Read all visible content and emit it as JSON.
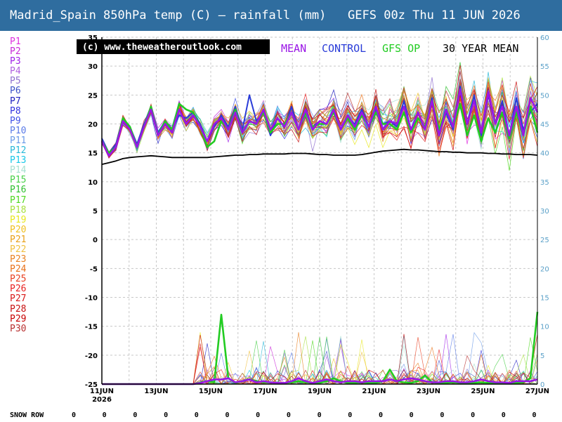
{
  "title": "Madrid_Spain 850hPa temp (C) — rainfall (mm)   GEFS 00z Thu 11 JUN 2026",
  "watermark": "(c) www.theweatheroutlook.com",
  "legend": [
    {
      "text": "MEAN",
      "color": "#9a16e6"
    },
    {
      "text": "CONTROL",
      "color": "#2a3cd8"
    },
    {
      "text": "GFS OP",
      "color": "#22cc22"
    },
    {
      "text": "30 YEAR MEAN",
      "color": "#000000"
    }
  ],
  "perturbations": [
    {
      "name": "P1",
      "color": "#e030e0"
    },
    {
      "name": "P2",
      "color": "#c828d8"
    },
    {
      "name": "P3",
      "color": "#a020e8"
    },
    {
      "name": "P4",
      "color": "#b060e0"
    },
    {
      "name": "P5",
      "color": "#9070d0"
    },
    {
      "name": "P6",
      "color": "#3a4fc8"
    },
    {
      "name": "P7",
      "color": "#2020c0"
    },
    {
      "name": "P8",
      "color": "#3030e0"
    },
    {
      "name": "P9",
      "color": "#4050e8"
    },
    {
      "name": "P10",
      "color": "#5a7ae8"
    },
    {
      "name": "P11",
      "color": "#6a9ae8"
    },
    {
      "name": "P12",
      "color": "#28b8d8"
    },
    {
      "name": "P13",
      "color": "#18c8e8"
    },
    {
      "name": "P14",
      "color": "#a8e0d0"
    },
    {
      "name": "P15",
      "color": "#48d048"
    },
    {
      "name": "P16",
      "color": "#30c030"
    },
    {
      "name": "P17",
      "color": "#50d820"
    },
    {
      "name": "P18",
      "color": "#a8e040"
    },
    {
      "name": "P19",
      "color": "#e8e820"
    },
    {
      "name": "P20",
      "color": "#f0c020"
    },
    {
      "name": "P21",
      "color": "#e8a018"
    },
    {
      "name": "P22",
      "color": "#f0c040"
    },
    {
      "name": "P23",
      "color": "#e88020"
    },
    {
      "name": "P24",
      "color": "#e87018"
    },
    {
      "name": "P25",
      "color": "#e84020"
    },
    {
      "name": "P26",
      "color": "#e82020"
    },
    {
      "name": "P27",
      "color": "#d81818"
    },
    {
      "name": "P28",
      "color": "#c81010"
    },
    {
      "name": "P29",
      "color": "#c80000"
    },
    {
      "name": "P30",
      "color": "#b83030"
    }
  ],
  "snow_row": {
    "label": "SNOW ROW",
    "values": [
      0,
      0,
      0,
      0,
      0,
      0,
      0,
      0,
      0,
      0,
      0,
      0,
      0,
      0,
      0,
      0
    ]
  },
  "chart_data": {
    "type": "line",
    "x_labels": [
      "11JUN",
      "13JUN",
      "15JUN",
      "17JUN",
      "19JUN",
      "21JUN",
      "23JUN",
      "25JUN",
      "27JUN"
    ],
    "x_sublabel": "2026",
    "x_step_days": 0.25,
    "y_left": {
      "label": "850hPa temp (C)",
      "min": -25,
      "max": 35,
      "ticks": [
        35,
        30,
        25,
        20,
        15,
        10,
        5,
        0,
        -5,
        -10,
        -15,
        -20,
        -25
      ]
    },
    "y_right": {
      "label": "rainfall (mm)",
      "min": 0,
      "max": 60,
      "ticks": [
        60,
        55,
        50,
        45,
        40,
        35,
        30,
        25,
        20,
        15,
        10,
        5,
        0
      ]
    },
    "series": [
      {
        "name": "MEAN",
        "axis": "left",
        "color": "#9a16e6",
        "values": [
          17,
          14.5,
          16,
          20.5,
          19,
          16,
          19.5,
          22.5,
          18,
          20,
          18.5,
          22.5,
          20,
          21.5,
          19.5,
          17,
          20,
          21,
          19,
          22,
          18.5,
          20.5,
          20,
          22.5,
          19,
          21,
          19.5,
          22,
          19,
          22.5,
          19,
          20.5,
          20,
          22.5,
          19,
          21.5,
          19.5,
          22,
          19.5,
          23,
          19,
          20.5,
          20,
          23,
          19,
          22,
          19,
          24,
          18,
          22.5,
          19.5,
          26,
          20,
          24,
          18.5,
          25.5,
          20,
          23,
          18,
          23,
          18,
          24.5,
          22
        ]
      },
      {
        "name": "CONTROL",
        "axis": "left",
        "color": "#2a3cd8",
        "values": [
          17.5,
          15,
          16.5,
          21,
          19.5,
          16.5,
          20,
          23,
          18.5,
          20.5,
          19,
          21.5,
          21,
          22,
          20,
          17,
          19.5,
          21.5,
          19.5,
          23,
          19,
          25,
          20.5,
          22,
          18,
          21,
          19.5,
          23,
          19,
          22,
          19.5,
          20.5,
          20,
          22,
          19,
          21,
          20,
          22.5,
          19.5,
          22.5,
          20,
          20.5,
          19.5,
          24,
          19,
          21,
          19.5,
          24.5,
          18,
          22,
          19,
          26.5,
          20,
          25,
          18,
          25,
          20,
          24,
          18,
          24.5,
          19,
          22,
          23.5
        ]
      },
      {
        "name": "GFS OP",
        "axis": "left",
        "color": "#22cc22",
        "values": [
          17,
          15,
          16,
          21,
          19.5,
          16,
          19.5,
          23,
          18,
          20.5,
          19,
          23.5,
          22.5,
          22,
          19.5,
          16,
          17,
          20.5,
          19,
          22.5,
          18.5,
          20.5,
          20,
          22,
          18.5,
          20,
          20,
          22,
          19,
          22,
          19.5,
          20,
          20,
          22,
          19,
          21,
          19,
          21.5,
          19.5,
          22,
          20,
          20,
          19,
          22,
          18.5,
          21,
          19.5,
          24,
          19,
          22.5,
          19.5,
          23.5,
          18,
          21.5,
          17,
          21,
          18.5,
          22,
          17.5,
          22,
          18,
          23,
          18.5
        ]
      },
      {
        "name": "30 YEAR MEAN",
        "axis": "left",
        "color": "#000000",
        "values": [
          13,
          13.3,
          13.6,
          14,
          14.2,
          14.3,
          14.4,
          14.5,
          14.4,
          14.3,
          14.2,
          14.2,
          14.2,
          14.2,
          14.2,
          14.2,
          14.3,
          14.4,
          14.5,
          14.6,
          14.6,
          14.7,
          14.7,
          14.8,
          14.8,
          14.8,
          14.8,
          14.9,
          14.9,
          14.9,
          14.8,
          14.7,
          14.7,
          14.6,
          14.6,
          14.6,
          14.6,
          14.7,
          14.9,
          15.1,
          15.3,
          15.4,
          15.5,
          15.6,
          15.5,
          15.5,
          15.4,
          15.3,
          15.2,
          15.2,
          15.1,
          15.1,
          15,
          15,
          15,
          14.9,
          14.9,
          14.8,
          14.8,
          14.7,
          14.7,
          14.7,
          14.6
        ]
      },
      {
        "name": "GFS OP rain",
        "axis": "right",
        "color": "#22cc22",
        "values": [
          0,
          0,
          0,
          0,
          0,
          0,
          0,
          0,
          0,
          0,
          0,
          0,
          0,
          0,
          0.3,
          0.5,
          0.3,
          12,
          1,
          0.2,
          0.5,
          0.8,
          0.5,
          0.3,
          0.3,
          0.2,
          0.2,
          0.3,
          0.5,
          0.3,
          0.2,
          0.2,
          0.5,
          1,
          0.5,
          0.2,
          0.2,
          0.3,
          0.2,
          0.2,
          0.5,
          2.5,
          0.5,
          0.3,
          0.2,
          0.5,
          1.5,
          0.3,
          0.2,
          0.2,
          0.3,
          0.2,
          0.2,
          0.2,
          0.3,
          0.2,
          0.2,
          0.2,
          0.2,
          0.2,
          0.3,
          1,
          12.5
        ]
      },
      {
        "name": "MEAN rain",
        "axis": "right",
        "color": "#9a16e6",
        "values": [
          0,
          0,
          0,
          0,
          0,
          0,
          0,
          0,
          0,
          0,
          0,
          0,
          0,
          0,
          0.2,
          0.5,
          0.8,
          0.8,
          1,
          0.3,
          0.5,
          0.8,
          0.3,
          0.5,
          0.3,
          0.2,
          0.2,
          0.5,
          1,
          0.5,
          0.2,
          0.5,
          0.8,
          0.5,
          0.3,
          0.5,
          0.5,
          0.3,
          0.5,
          0.5,
          0.5,
          0.8,
          0.5,
          0.8,
          1,
          0.8,
          0.5,
          0.3,
          0.3,
          0.5,
          0.5,
          0.3,
          0.3,
          0.5,
          0.8,
          0.5,
          0.3,
          0.3,
          0.2,
          0.5,
          0.5,
          0.5,
          0.8
        ]
      }
    ]
  }
}
